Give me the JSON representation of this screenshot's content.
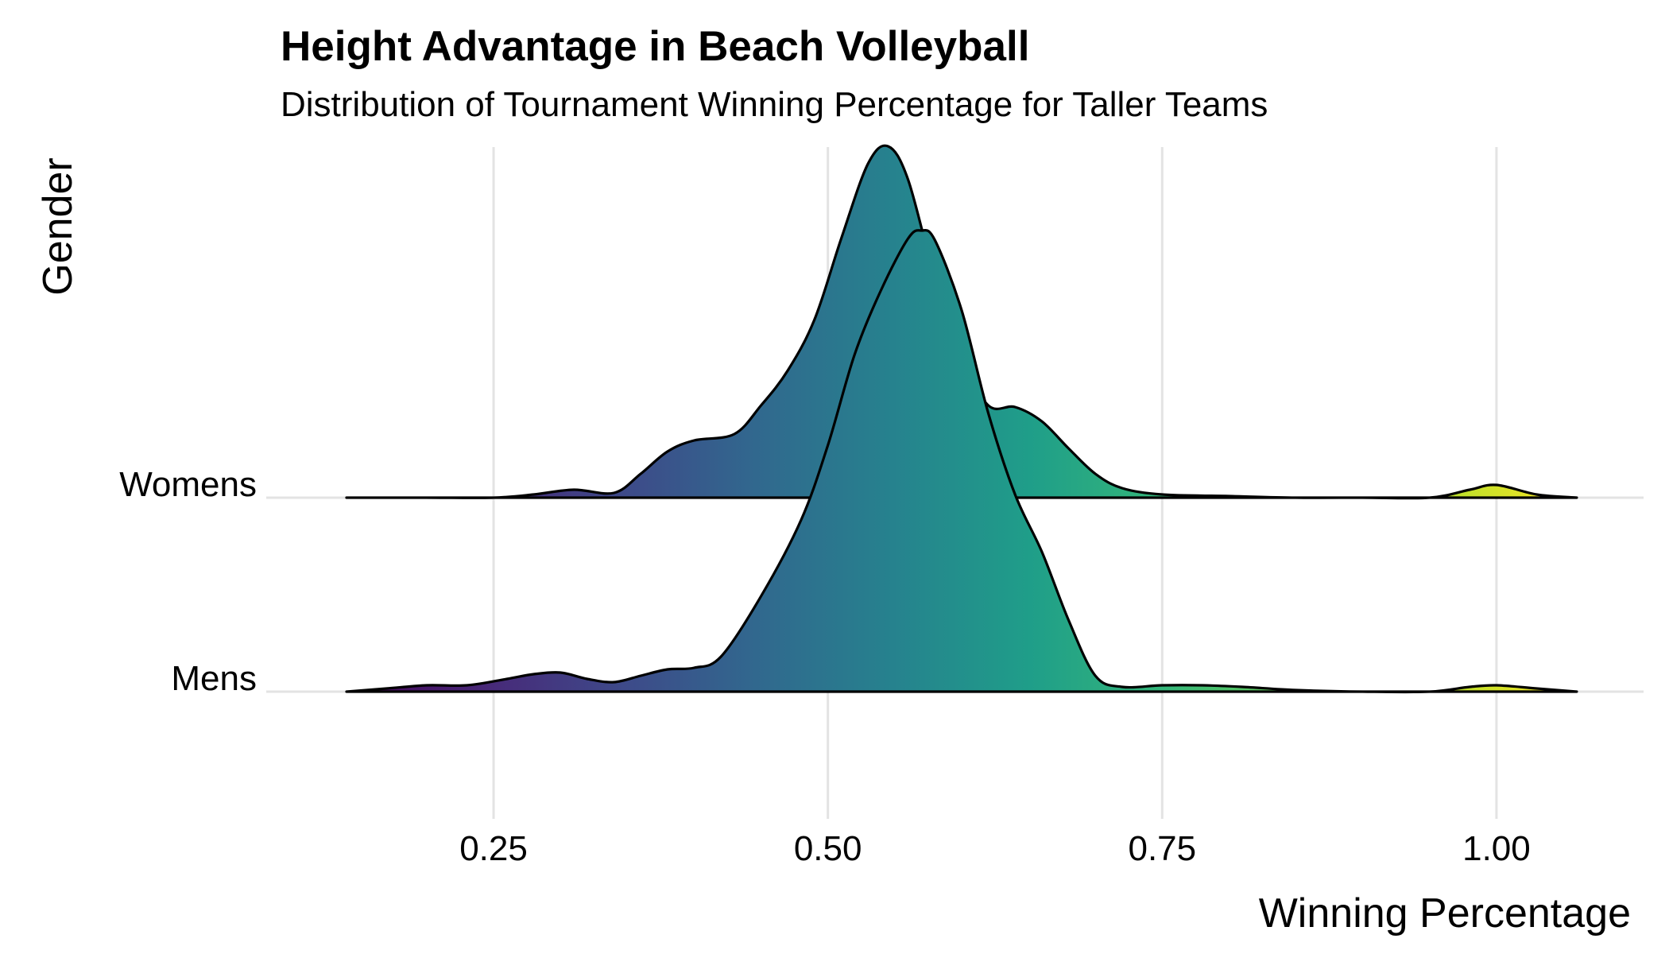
{
  "chart_data": {
    "type": "area",
    "subtype": "ridgeline",
    "title": "Height Advantage in Beach Volleyball",
    "subtitle": "Distribution of Tournament Winning Percentage for Taller Teams",
    "xlabel": "Winning Percentage",
    "ylabel": "Gender",
    "xlim": [
      0.08,
      1.11
    ],
    "x_ticks": [
      0.25,
      0.5,
      0.75,
      1.0
    ],
    "x_tick_labels": [
      "0.25",
      "0.50",
      "0.75",
      "1.00"
    ],
    "grid": "vertical",
    "legend": "none",
    "fill_colorscale": "viridis (by x)",
    "categories": [
      "Womens",
      "Mens"
    ],
    "series": [
      {
        "name": "Womens",
        "x": [
          0.14,
          0.2,
          0.25,
          0.28,
          0.31,
          0.34,
          0.36,
          0.38,
          0.4,
          0.43,
          0.45,
          0.47,
          0.49,
          0.51,
          0.53,
          0.545,
          0.56,
          0.58,
          0.6,
          0.62,
          0.64,
          0.66,
          0.68,
          0.7,
          0.72,
          0.75,
          0.8,
          0.85,
          0.9,
          0.95,
          0.98,
          1.0,
          1.03,
          1.06
        ],
        "density": [
          0.0,
          0.0,
          0.0,
          0.02,
          0.05,
          0.03,
          0.15,
          0.29,
          0.36,
          0.4,
          0.58,
          0.8,
          1.12,
          1.63,
          2.1,
          2.21,
          2.0,
          1.38,
          0.88,
          0.58,
          0.57,
          0.48,
          0.31,
          0.15,
          0.06,
          0.02,
          0.01,
          0.0,
          0.0,
          0.0,
          0.05,
          0.08,
          0.02,
          0.0
        ]
      },
      {
        "name": "Mens",
        "x": [
          0.14,
          0.17,
          0.2,
          0.23,
          0.26,
          0.28,
          0.3,
          0.32,
          0.34,
          0.36,
          0.38,
          0.4,
          0.42,
          0.45,
          0.48,
          0.5,
          0.52,
          0.54,
          0.56,
          0.57,
          0.58,
          0.6,
          0.62,
          0.64,
          0.66,
          0.68,
          0.7,
          0.72,
          0.75,
          0.78,
          0.81,
          0.85,
          0.9,
          0.95,
          0.98,
          1.0,
          1.03,
          1.06
        ],
        "density": [
          0.0,
          0.02,
          0.04,
          0.04,
          0.08,
          0.11,
          0.12,
          0.08,
          0.06,
          0.1,
          0.14,
          0.15,
          0.22,
          0.6,
          1.08,
          1.55,
          2.12,
          2.53,
          2.85,
          2.9,
          2.84,
          2.4,
          1.75,
          1.24,
          0.88,
          0.45,
          0.1,
          0.03,
          0.04,
          0.04,
          0.03,
          0.01,
          0.0,
          0.0,
          0.03,
          0.04,
          0.02,
          0.0
        ]
      }
    ]
  }
}
